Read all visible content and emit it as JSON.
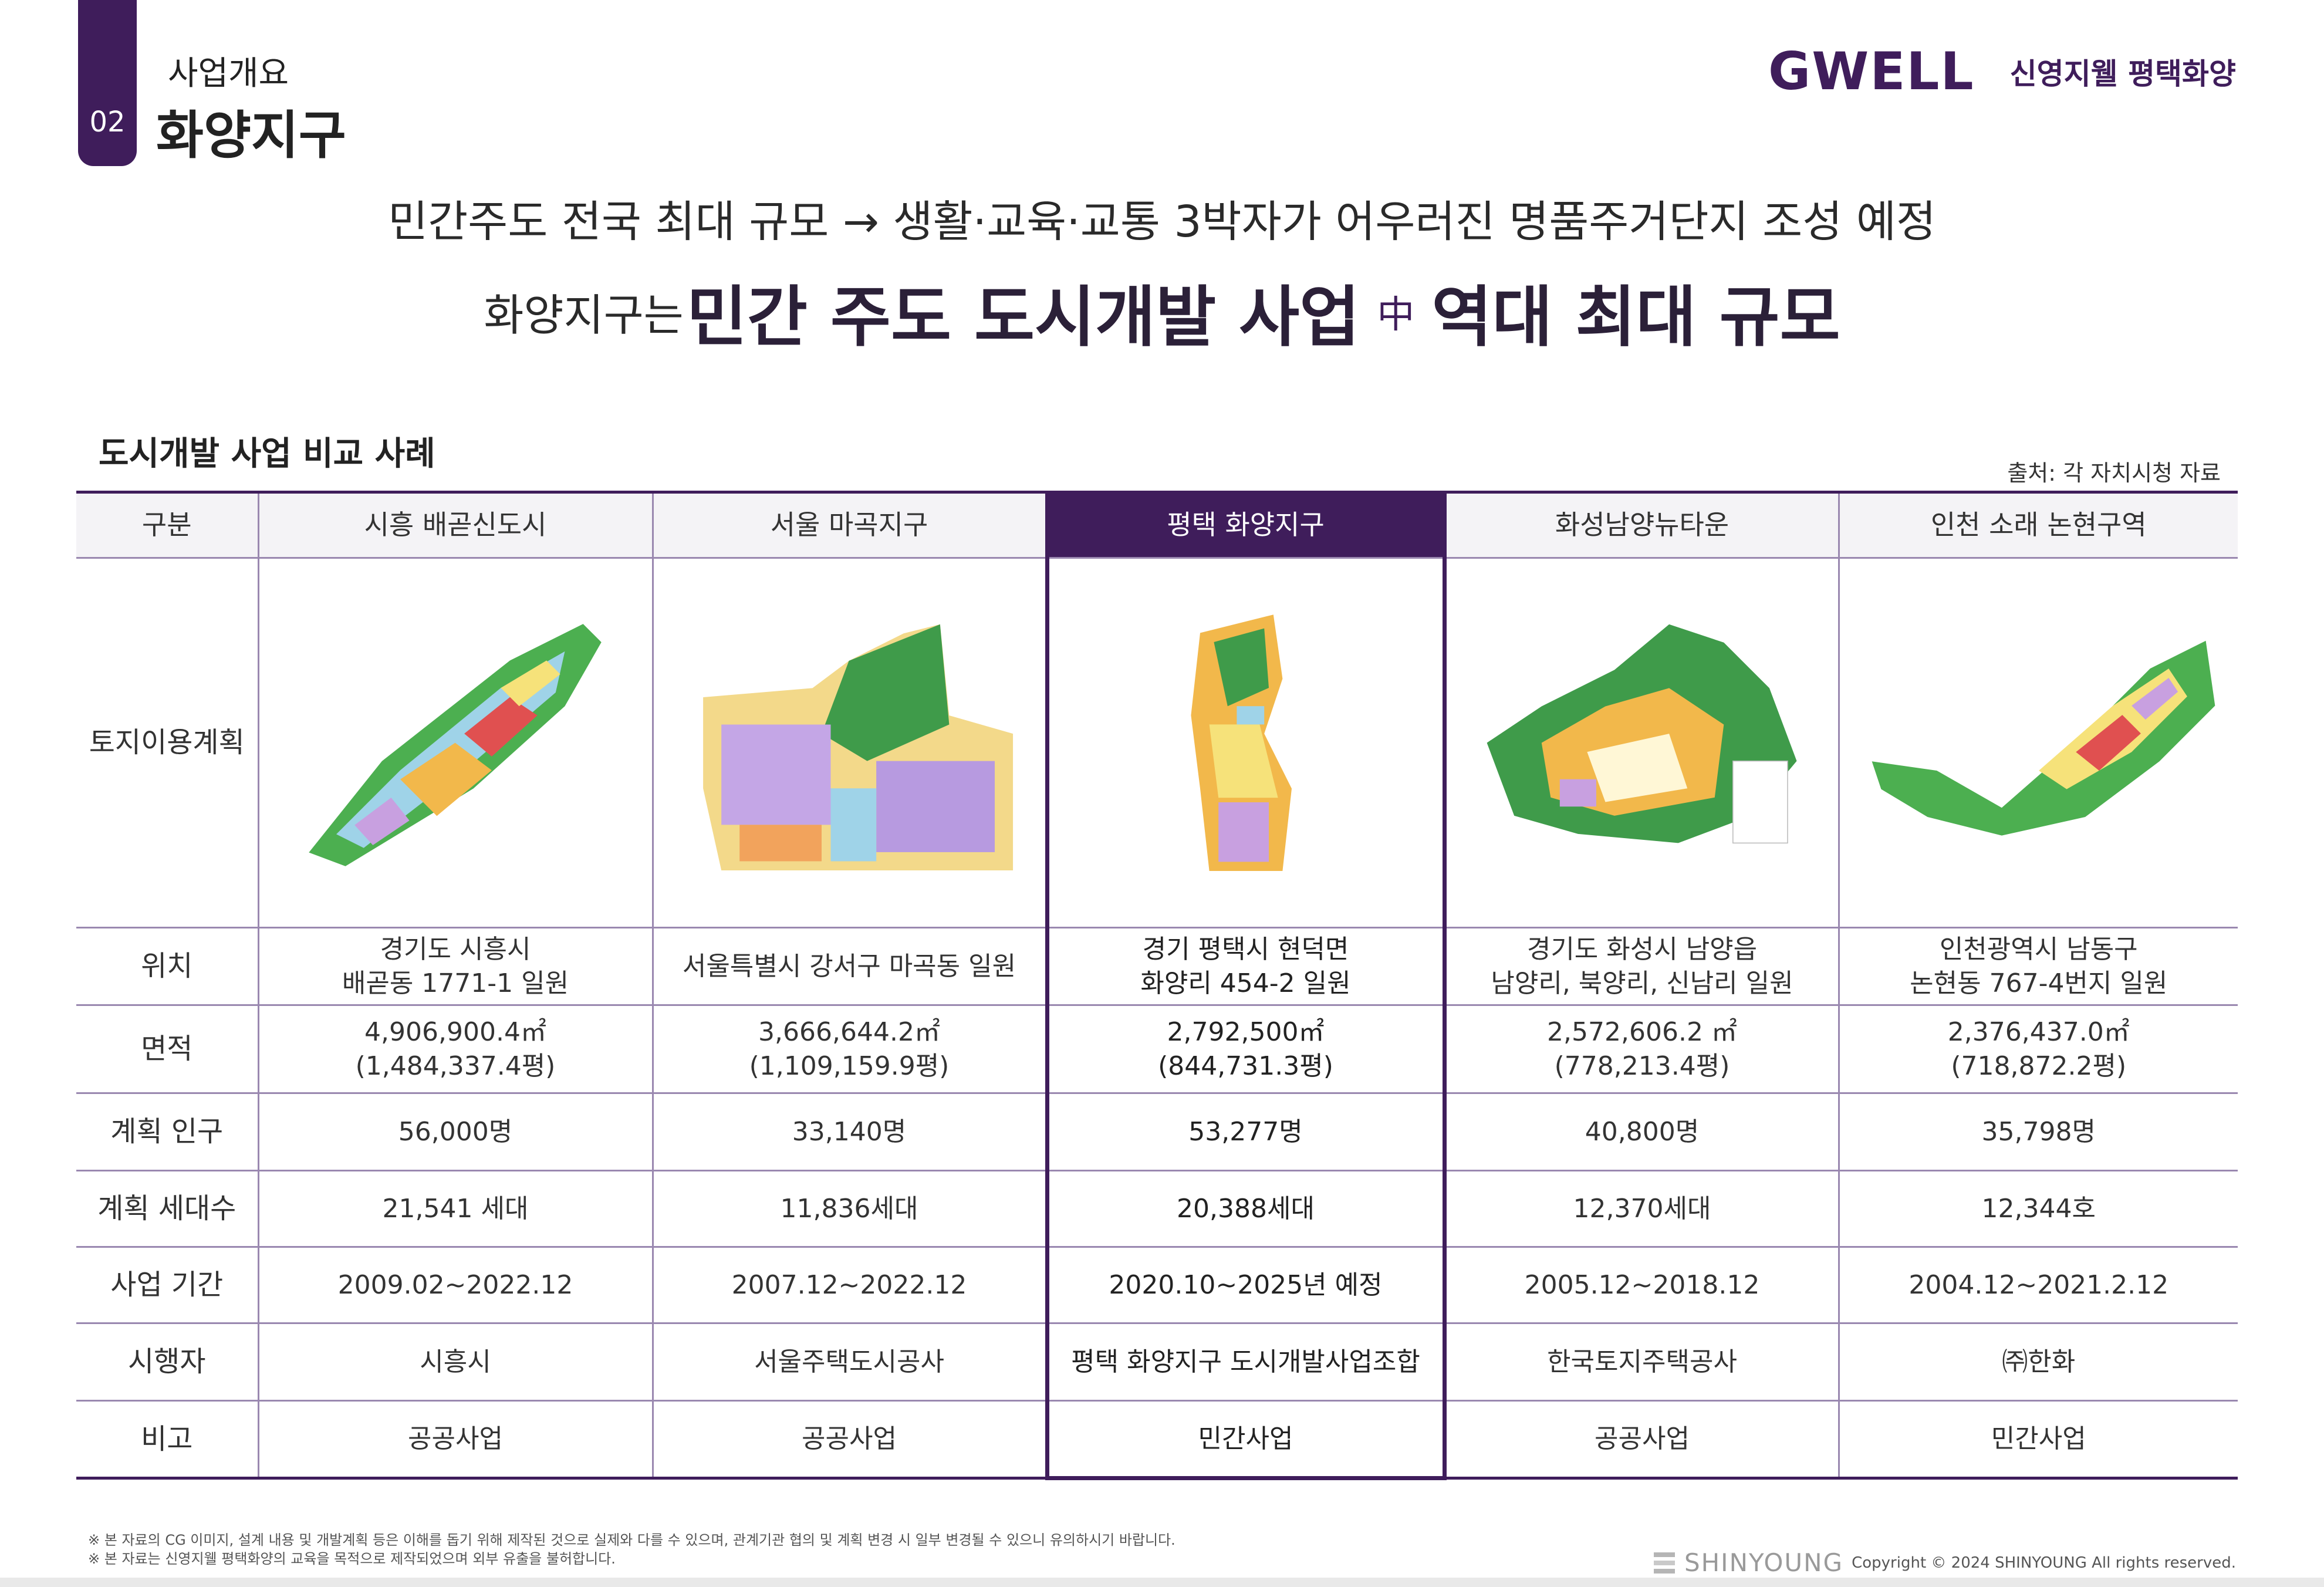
{
  "section": {
    "number": "02",
    "subtitle": "사업개요",
    "title": "화양지구"
  },
  "brand": {
    "logo": "GWELL",
    "name": "신영지웰 평택화양"
  },
  "headline": {
    "line1": "민간주도 전국 최대 규모 → 생활·교육·교통 3박자가 어우러진 명품주거단지 조성 예정",
    "line2_lead": "화양지구는",
    "line2_part1": "민간 주도 도시개발 사업",
    "line2_plus": "中",
    "line2_part2": "역대 최대 규모"
  },
  "table": {
    "title": "도시개발 사업 비교 사례",
    "source": "출처: 각 자치시청 자료",
    "row_labels": {
      "header": "구분",
      "plan": "토지이용계획",
      "location": "위치",
      "area": "면적",
      "population": "계획 인구",
      "households": "계획 세대수",
      "period": "사업 기간",
      "operator": "시행자",
      "note": "비고"
    },
    "columns": [
      {
        "name": "시흥 배곧신도시",
        "location1": "경기도 시흥시",
        "location2": "배곧동 1771-1 일원",
        "area1": "4,906,900.4㎡",
        "area2": "(1,484,337.4평)",
        "population": "56,000명",
        "households": "21,541 세대",
        "period": "2009.02~2022.12",
        "operator": "시흥시",
        "note": "공공사업"
      },
      {
        "name": "서울 마곡지구",
        "location1": "서울특별시 강서구 마곡동 일원",
        "location2": "",
        "area1": "3,666,644.2㎡",
        "area2": "(1,109,159.9평)",
        "population": "33,140명",
        "households": "11,836세대",
        "period": "2007.12~2022.12",
        "operator": "서울주택도시공사",
        "note": "공공사업"
      },
      {
        "name": "평택 화양지구",
        "location1": "경기 평택시 현덕면",
        "location2": "화양리 454-2 일원",
        "area1": "2,792,500㎡",
        "area2": "(844,731.3평)",
        "population": "53,277명",
        "households": "20,388세대",
        "period": "2020.10~2025년 예정",
        "operator": "평택 화양지구 도시개발사업조합",
        "note": "민간사업"
      },
      {
        "name": "화성남양뉴타운",
        "location1": "경기도 화성시 남양읍",
        "location2": "남양리, 북양리, 신남리 일원",
        "area1": "2,572,606.2 ㎡",
        "area2": "(778,213.4평)",
        "population": "40,800명",
        "households": "12,370세대",
        "period": "2005.12~2018.12",
        "operator": "한국토지주택공사",
        "note": "공공사업"
      },
      {
        "name": "인천 소래 논현구역",
        "location1": "인천광역시 남동구",
        "location2": "논현동 767-4번지 일원",
        "area1": "2,376,437.0㎡",
        "area2": "(718,872.2평)",
        "population": "35,798명",
        "households": "12,344호",
        "period": "2004.12~2021.2.12",
        "operator": "㈜한화",
        "note": "민간사업"
      }
    ]
  },
  "disclaimer": {
    "line1": "※ 본 자료의 CG 이미지, 설계 내용 및 개발계획 등은 이해를 돕기 위해 제작된 것으로 실제와 다를 수 있으며, 관계기관 협의 및 계획 변경 시 일부 변경될 수 있으니 유의하시기 바랍니다.",
    "line2": "※ 본 자료는 신영지웰 평택화양의 교육을 목적으로 제작되었으며 외부 유출을 불허합니다."
  },
  "footer": {
    "company": "SHINYOUNG",
    "copyright": "Copyright © 2024 SHINYOUNG All rights reserved."
  },
  "colors": {
    "accent": "#3f1d5b",
    "grid": "#9a88b0"
  }
}
